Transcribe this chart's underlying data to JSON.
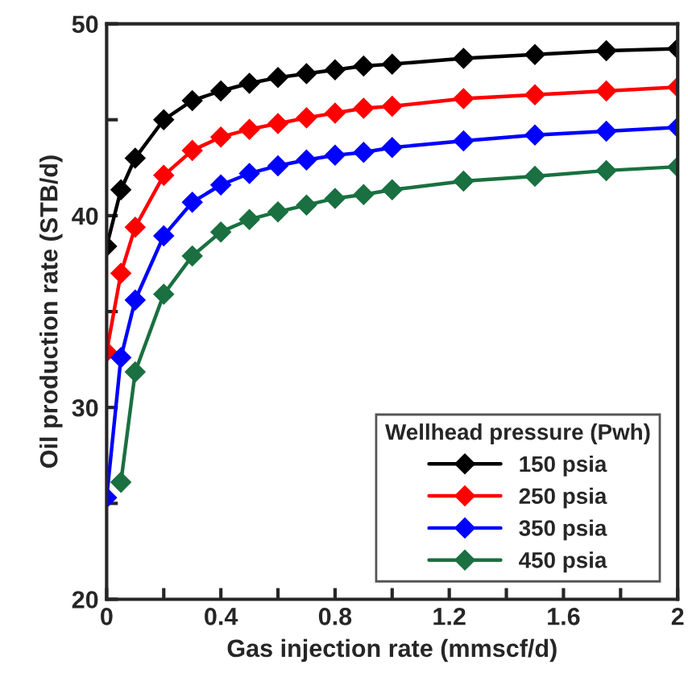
{
  "chart_data": {
    "type": "line",
    "xlabel": "Gas injection rate (mmscf/d)",
    "ylabel": "Oil production rate (STB/d)",
    "legend_title": "Wellhead pressure (Pwh)",
    "xlim": [
      0,
      2
    ],
    "ylim": [
      20,
      50
    ],
    "xticks": [
      0,
      {
        "value": 0.2,
        "label": null
      },
      0.4,
      {
        "value": 0.6,
        "label": null
      },
      0.8,
      {
        "value": 1.0,
        "label": null
      },
      1.2,
      {
        "value": 1.4,
        "label": null
      },
      1.6,
      {
        "value": 1.8,
        "label": null
      },
      2
    ],
    "yticks": [
      20,
      {
        "value": 25,
        "label": null
      },
      30,
      {
        "value": 35,
        "label": null
      },
      40,
      {
        "value": 45,
        "label": null
      },
      50
    ],
    "grid": false,
    "legend": "bottom right",
    "marker": "diamond",
    "line_style": "solid",
    "series": [
      {
        "name": "150 psia",
        "color": "#000000",
        "x": [
          0,
          0.05,
          0.1,
          0.2,
          0.3,
          0.4,
          0.5,
          0.6,
          0.7,
          0.8,
          0.9,
          1.0,
          1.25,
          1.5,
          1.75,
          2.0
        ],
        "values": [
          38.4,
          41.35,
          43.0,
          45.0,
          46.0,
          46.5,
          46.9,
          47.2,
          47.4,
          47.6,
          47.8,
          47.9,
          48.2,
          48.4,
          48.6,
          48.7
        ]
      },
      {
        "name": "250 psia",
        "color": "#ff0000",
        "x": [
          0,
          0.05,
          0.1,
          0.2,
          0.3,
          0.4,
          0.5,
          0.6,
          0.7,
          0.8,
          0.9,
          1.0,
          1.25,
          1.5,
          1.75,
          2.0
        ],
        "values": [
          32.9,
          37.0,
          39.4,
          42.1,
          43.4,
          44.1,
          44.5,
          44.8,
          45.1,
          45.35,
          45.6,
          45.7,
          46.1,
          46.3,
          46.5,
          46.7
        ]
      },
      {
        "name": "350 psia",
        "color": "#0000ff",
        "x": [
          0,
          0.05,
          0.1,
          0.2,
          0.3,
          0.4,
          0.5,
          0.6,
          0.7,
          0.8,
          0.9,
          1.0,
          1.25,
          1.5,
          1.75,
          2.0
        ],
        "values": [
          25.3,
          32.6,
          35.6,
          38.95,
          40.7,
          41.6,
          42.2,
          42.6,
          42.9,
          43.15,
          43.3,
          43.55,
          43.9,
          44.2,
          44.4,
          44.6
        ]
      },
      {
        "name": "450 psia",
        "color": "#1a7040",
        "x": [
          0.05,
          0.1,
          0.2,
          0.3,
          0.4,
          0.5,
          0.6,
          0.7,
          0.8,
          0.9,
          1.0,
          1.25,
          1.5,
          1.75,
          2.0
        ],
        "values": [
          26.1,
          31.85,
          35.9,
          37.9,
          39.15,
          39.8,
          40.2,
          40.55,
          40.9,
          41.1,
          41.35,
          41.8,
          42.05,
          42.35,
          42.55
        ]
      }
    ]
  }
}
